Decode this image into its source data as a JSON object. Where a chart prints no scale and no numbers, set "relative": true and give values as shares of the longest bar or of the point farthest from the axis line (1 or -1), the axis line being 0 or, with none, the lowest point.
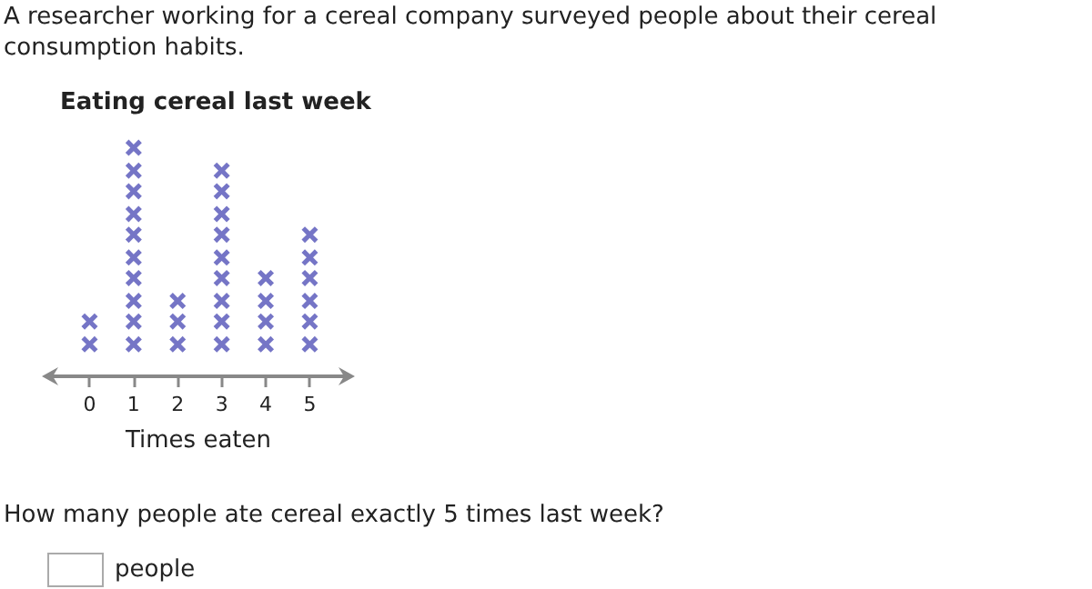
{
  "chart_data": {
    "type": "scatter",
    "title": "Eating cereal last week",
    "xlabel": "Times eaten",
    "relative": true,
    "x": [
      0,
      0,
      1,
      1,
      1,
      1,
      1,
      1,
      1,
      1,
      1,
      1,
      2,
      2,
      2,
      3,
      3,
      3,
      3,
      3,
      3,
      3,
      3,
      3,
      4,
      4,
      4,
      4,
      5,
      5,
      5,
      5,
      5,
      5
    ],
    "values": [
      0.14,
      0.24,
      0.14,
      0.24,
      0.33,
      0.43,
      0.52,
      0.62,
      0.71,
      0.81,
      0.9,
      1,
      0.14,
      0.24,
      0.33,
      0.14,
      0.24,
      0.33,
      0.43,
      0.52,
      0.62,
      0.71,
      0.81,
      0.9,
      0.14,
      0.24,
      0.33,
      0.43,
      0.14,
      0.24,
      0.33,
      0.43,
      0.52,
      0.62
    ],
    "color": "#5353b8",
    "marker": "cross",
    "xlim": [
      -0.96,
      5.9
    ],
    "xticks": [
      0,
      1,
      2,
      3,
      4,
      5
    ],
    "tick_labels": "x",
    "annotations": [
      "A researcher working for a cereal company surveyed people about their cereal consumption habits.",
      "How many people ate cereal exactly 5 times last week?",
      "people"
    ]
  }
}
